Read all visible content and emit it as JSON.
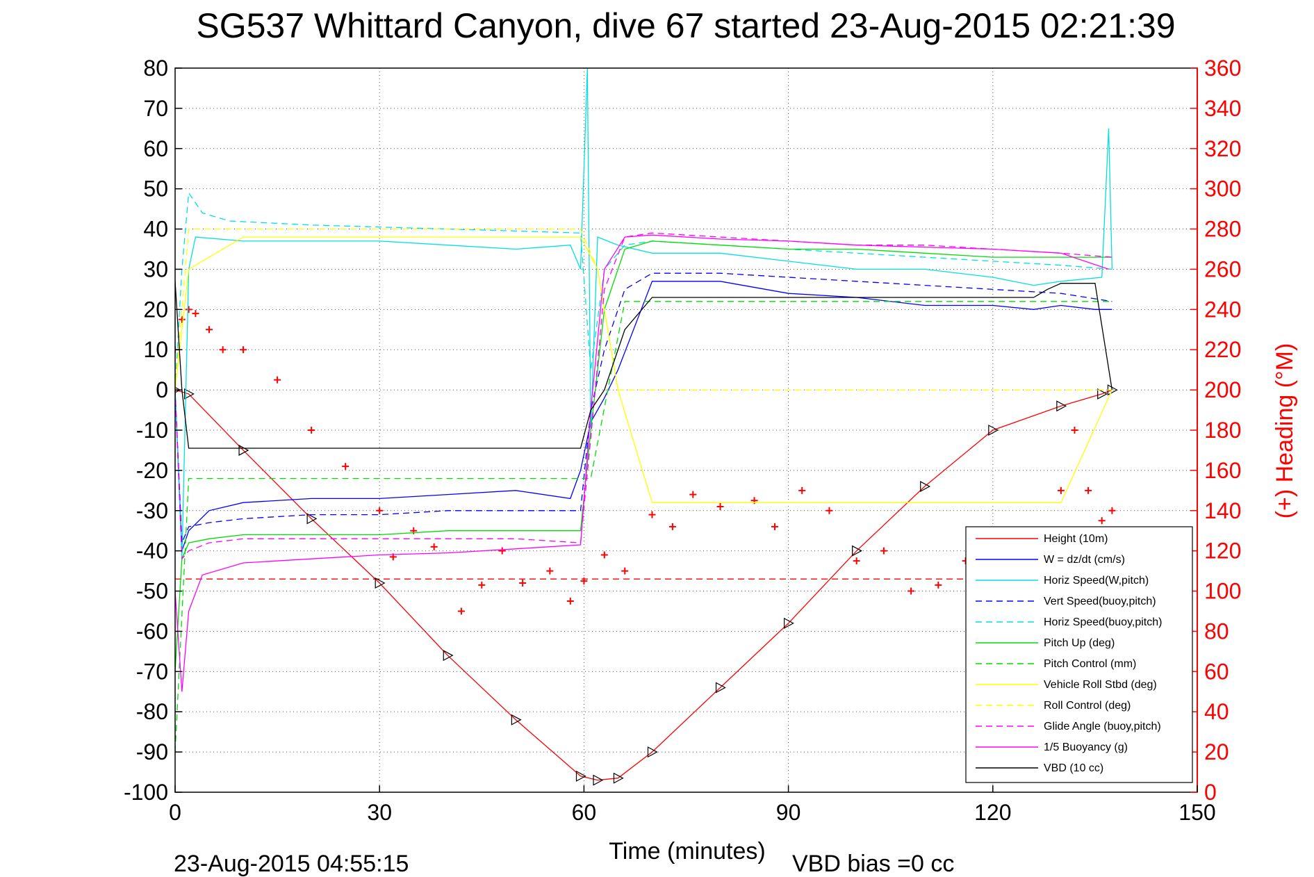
{
  "chart_data": {
    "type": "line",
    "title": "SG537 Whittard Canyon, dive 67 started 23-Aug-2015 02:21:39",
    "xlabel": "Time (minutes)",
    "ylabel_right": "(+) Heading (°M)",
    "xlim": [
      0,
      150
    ],
    "ylim_left": [
      -100,
      80
    ],
    "ylim_right": [
      0,
      360
    ],
    "xticks": [
      0,
      30,
      60,
      90,
      120,
      150
    ],
    "yticks_left": [
      -100,
      -90,
      -80,
      -70,
      -60,
      -50,
      -40,
      -30,
      -20,
      -10,
      0,
      10,
      20,
      30,
      40,
      50,
      60,
      70,
      80
    ],
    "yticks_right": [
      0,
      20,
      40,
      60,
      80,
      100,
      120,
      140,
      160,
      180,
      200,
      220,
      240,
      260,
      280,
      300,
      320,
      340,
      360
    ],
    "grid": true,
    "legend_position": "bottom-right",
    "footer_left": "23-Aug-2015 04:55:15",
    "footer_right": "VBD bias =0 cc",
    "series": [
      {
        "name": "Height (10m)",
        "color": "#ff0000",
        "dash": "solid",
        "marker": "triangle",
        "x": [
          0,
          2,
          10,
          20,
          30,
          40,
          50,
          59.5,
          62,
          65,
          70,
          80,
          90,
          100,
          110,
          120,
          130,
          136,
          137.5
        ],
        "y": [
          0,
          -1,
          -15,
          -32,
          -48,
          -66,
          -82,
          -96,
          -97,
          -96.5,
          -90,
          -74,
          -58,
          -40,
          -24,
          -10,
          -4,
          -1,
          0
        ]
      },
      {
        "name": "W = dz/dt (cm/s)",
        "color": "#0000ff",
        "dash": "solid",
        "x": [
          0,
          1,
          2,
          5,
          10,
          20,
          30,
          40,
          50,
          58,
          59.5,
          61,
          63,
          65,
          70,
          80,
          90,
          100,
          110,
          120,
          126,
          130,
          135,
          137.5
        ],
        "y": [
          0,
          -40,
          -35,
          -30,
          -28,
          -27,
          -27,
          -26,
          -25,
          -27,
          -20,
          -8,
          -2,
          5,
          27,
          27,
          24,
          23,
          21,
          21,
          20,
          21,
          20,
          20
        ]
      },
      {
        "name": "Horiz Speed(W,pitch)",
        "color": "#00e0e0",
        "dash": "solid",
        "x": [
          0,
          1,
          2,
          3,
          10,
          20,
          30,
          40,
          50,
          58,
          59.5,
          60.5,
          61,
          62,
          65,
          70,
          80,
          90,
          100,
          110,
          120,
          126,
          130,
          136,
          137,
          137.5
        ],
        "y": [
          0,
          -42,
          30,
          38,
          37,
          37,
          37,
          36,
          35,
          36,
          30,
          80,
          -10,
          38,
          36,
          34,
          34,
          32,
          30,
          30,
          28,
          26,
          27,
          28,
          65,
          30
        ]
      },
      {
        "name": "Vert Speed(buoy,pitch)",
        "color": "#0000ff",
        "dash": "dashed",
        "x": [
          0,
          1,
          2,
          5,
          10,
          20,
          30,
          40,
          50,
          59.5,
          61,
          63,
          66,
          70,
          80,
          90,
          100,
          110,
          120,
          130,
          137.5
        ],
        "y": [
          0,
          -38,
          -34,
          -33,
          -32,
          -31,
          -31,
          -30,
          -30,
          -30,
          -5,
          10,
          25,
          29,
          29,
          28,
          27,
          26,
          25,
          24,
          22
        ]
      },
      {
        "name": "Horiz Speed(buoy,pitch)",
        "color": "#00e0e0",
        "dash": "dashed",
        "x": [
          0,
          1,
          2,
          4,
          8,
          20,
          30,
          40,
          50,
          59.5,
          61,
          63,
          66,
          70,
          80,
          90,
          100,
          110,
          120,
          130,
          137.5
        ],
        "y": [
          0,
          30,
          49,
          44,
          42,
          41,
          40.5,
          40,
          39.5,
          39,
          5,
          30,
          36,
          37,
          36,
          35,
          34,
          33,
          32,
          31,
          30
        ]
      },
      {
        "name": "Pitch Up (deg)",
        "color": "#00dd00",
        "dash": "solid",
        "x": [
          0,
          1,
          2,
          5,
          10,
          20,
          30,
          40,
          50,
          59.5,
          61,
          63,
          66,
          70,
          80,
          90,
          100,
          110,
          120,
          130,
          137.5
        ],
        "y": [
          -70,
          -42,
          -38,
          -37,
          -36,
          -36,
          -36,
          -35,
          -35,
          -35,
          -10,
          20,
          35,
          37,
          36,
          35,
          35,
          34,
          33,
          33,
          33
        ]
      },
      {
        "name": "Pitch Control (mm)",
        "color": "#00dd00",
        "dash": "dashed",
        "x": [
          0,
          2,
          59.5,
          61,
          66,
          137.5
        ],
        "y": [
          -90,
          -22,
          -22,
          -22,
          22,
          22
        ]
      },
      {
        "name": "Vehicle Roll Stbd (deg)",
        "color": "#ffff00",
        "dash": "solid",
        "x": [
          0,
          2,
          10,
          20,
          30,
          40,
          50,
          59.5,
          62,
          65,
          70,
          80,
          90,
          100,
          110,
          120,
          130,
          137.5
        ],
        "y": [
          0,
          30,
          38,
          38,
          38,
          38,
          38,
          38,
          30,
          0,
          -28,
          -28,
          -28,
          -28,
          -28,
          -28,
          -28,
          0
        ]
      },
      {
        "name": "Roll Control (deg)",
        "color": "#ffff00",
        "dash": "dashed",
        "x": [
          0,
          2,
          59.5,
          62,
          65,
          137.5
        ],
        "y": [
          0,
          40,
          40,
          30,
          0,
          0
        ]
      },
      {
        "name": "Glide Angle (buoy,pitch)",
        "color": "#ff00ff",
        "dash": "dashed",
        "x": [
          0,
          1,
          2,
          5,
          10,
          20,
          30,
          40,
          50,
          59.5,
          61,
          63,
          66,
          70,
          80,
          90,
          100,
          110,
          120,
          130,
          137.5
        ],
        "y": [
          0,
          -42,
          -40,
          -38,
          -37,
          -37,
          -37,
          -37,
          -37,
          -38,
          -12,
          25,
          38,
          39,
          38,
          37,
          36,
          36,
          35,
          34,
          33
        ]
      },
      {
        "name": "1/5 Buoyancy (g)",
        "color": "#ff00ff",
        "dash": "solid",
        "x": [
          0,
          1,
          2,
          4,
          10,
          20,
          30,
          40,
          50,
          59.5,
          61,
          63,
          66,
          70,
          80,
          90,
          100,
          110,
          120,
          130,
          137
        ],
        "y": [
          -50,
          -75,
          -55,
          -46,
          -43,
          -42,
          -41,
          -40.5,
          -39.5,
          -38.5,
          -5,
          30,
          38,
          38.5,
          37.5,
          37,
          36,
          35.5,
          35,
          34,
          30
        ]
      },
      {
        "name": "VBD (10 cc)",
        "color": "#000000",
        "dash": "solid",
        "x": [
          0,
          1,
          2,
          58,
          59.5,
          61,
          63,
          66,
          70,
          80,
          90,
          100,
          110,
          120,
          126,
          128,
          130,
          135,
          137.5
        ],
        "y": [
          27,
          0,
          -14.5,
          -14.5,
          -14.5,
          -5,
          0,
          15,
          23,
          23,
          23,
          23,
          23,
          23,
          23,
          25,
          26.5,
          26.5,
          0
        ]
      }
    ],
    "extra_series": [
      {
        "name": "",
        "color": "#ff0000",
        "dash": "dashed",
        "axis": "left",
        "x": [
          0,
          137.5
        ],
        "y": [
          -47,
          -47
        ]
      },
      {
        "name": "",
        "color": "#ff0000",
        "marker": "plus",
        "axis": "right",
        "x": [
          0,
          1,
          2,
          3,
          5,
          7,
          10,
          15,
          20,
          25,
          30,
          32,
          35,
          38,
          42,
          45,
          48,
          51,
          55,
          58,
          60,
          63,
          66,
          70,
          73,
          76,
          80,
          85,
          88,
          92,
          96,
          100,
          104,
          108,
          112,
          116,
          120,
          124,
          128,
          130,
          132,
          134,
          136,
          137.5
        ],
        "y": [
          220,
          235,
          240,
          238,
          230,
          220,
          220,
          205,
          180,
          162,
          140,
          117,
          130,
          122,
          90,
          103,
          120,
          104,
          110,
          95,
          105,
          118,
          110,
          138,
          132,
          148,
          142,
          145,
          132,
          150,
          140,
          115,
          120,
          100,
          103,
          115,
          120,
          130,
          110,
          150,
          180,
          150,
          135,
          140
        ]
      }
    ]
  }
}
